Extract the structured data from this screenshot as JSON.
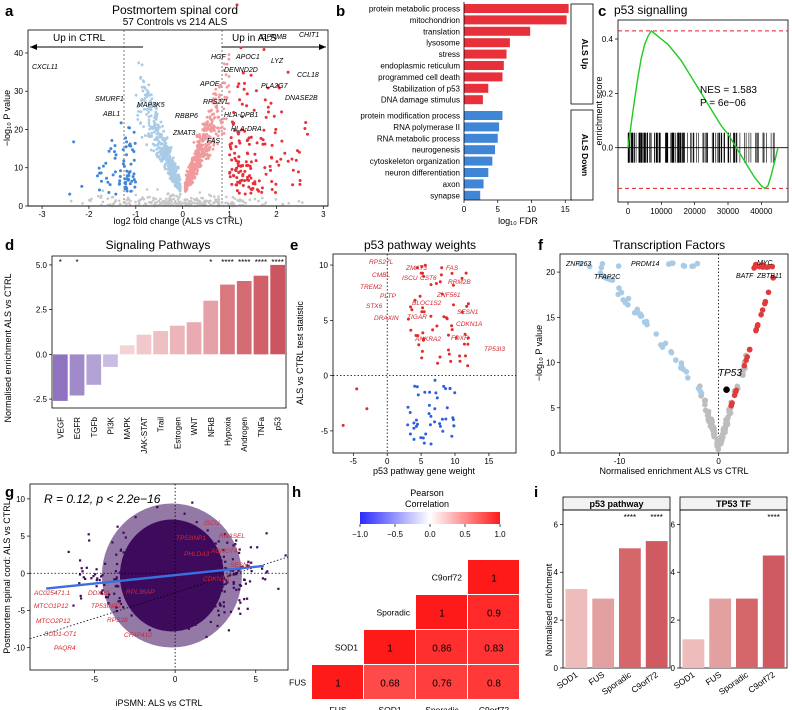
{
  "panel_labels": [
    "a",
    "b",
    "c",
    "d",
    "e",
    "f",
    "g",
    "h",
    "i"
  ],
  "colors": {
    "red": "#e8303a",
    "blue": "#3f86d6",
    "lightblue": "#a9cbe6",
    "grey": "#c8c8c8",
    "purple": "#3d0a5c"
  },
  "panel_a": {
    "title": "Postmortem spinal cord",
    "subtitle": "57 Controls vs 214 ALS",
    "up_ctrl": "Up in CTRL",
    "up_als": "Up in ALS",
    "xlabel": "log2 fold change (ALS vs CTRL)",
    "ylabel": "−log₁₀ P value",
    "genes_up": [
      "GPNMB",
      "CHIT1",
      "HGF",
      "APOC1",
      "LYZ",
      "DENND2D",
      "CCL18",
      "APOE",
      "PLA2G7",
      "DNASE2B",
      "MAP3K5",
      "RPS27L",
      "RBBP6",
      "HLA-DPB1",
      "ZMAT3",
      "HLA-DRA",
      "FAS"
    ],
    "genes_down": [
      "CXCL11",
      "SMURF1",
      "ABL1"
    ],
    "chart_data": {
      "type": "scatter",
      "title": "Postmortem spinal cord",
      "xlabel": "log2 fold change (ALS vs CTRL)",
      "ylabel": "-log10 P value",
      "xlim": [
        -3.3,
        3.1
      ],
      "ylim": [
        0,
        46
      ],
      "xticks": [
        "-3",
        "-2",
        "-1",
        "0",
        "1",
        "2",
        "3"
      ],
      "yticks": [
        "0",
        "10",
        "20",
        "30",
        "40"
      ]
    }
  },
  "panel_b": {
    "xlabel": "log₁₀ FDR",
    "group_up": "ALS Up",
    "group_down": "ALS Down",
    "chart_data": {
      "type": "bar",
      "orientation": "horizontal",
      "xlim": [
        0,
        16
      ],
      "xticks": [
        "0",
        "5",
        "10",
        "15"
      ],
      "up": {
        "categories": [
          "protein metabolic process",
          "mitochondrion",
          "translation",
          "lysosome",
          "stress",
          "endoplasmic reticulum",
          "programmed cell death",
          "Stabilization of p53",
          "DNA damage stimulus"
        ],
        "values": [
          15.5,
          15.2,
          9.8,
          6.8,
          6.3,
          5.9,
          5.7,
          3.6,
          2.8
        ]
      },
      "down": {
        "categories": [
          "protein modification process",
          "RNA polymerase II",
          "RNA metabolic process",
          "neurogenesis",
          "cytoskeleton organization",
          "neuron differentiation",
          "axon",
          "synapse"
        ],
        "values": [
          5.7,
          5.2,
          5.0,
          4.6,
          4.2,
          3.6,
          2.9,
          2.4
        ]
      }
    }
  },
  "panel_c": {
    "title": "p53 signalling",
    "ylabel": "enrichment score",
    "nes": "NES = 1.583",
    "p": "P = 6e−06",
    "chart_data": {
      "type": "line",
      "xlim": [
        -3000,
        48000
      ],
      "ylim": [
        -0.2,
        0.47
      ],
      "xticks": [
        "0",
        "10000",
        "20000",
        "30000",
        "40000"
      ],
      "yticks": [
        "0.0",
        "0.2",
        "0.4"
      ],
      "max_es": 0.43,
      "min_es": -0.15,
      "x": [
        0,
        1000,
        2000,
        3000,
        4000,
        5000,
        6000,
        7000,
        8000,
        9000,
        10000,
        12000,
        14000,
        16000,
        18000,
        20000,
        22000,
        24000,
        26000,
        28000,
        30000,
        32000,
        34000,
        36000,
        38000,
        40000,
        41000,
        42000,
        43000,
        44000,
        45000
      ],
      "y": [
        0.0,
        0.09,
        0.18,
        0.26,
        0.33,
        0.38,
        0.41,
        0.43,
        0.42,
        0.41,
        0.4,
        0.38,
        0.35,
        0.32,
        0.28,
        0.24,
        0.2,
        0.16,
        0.12,
        0.08,
        0.05,
        0.01,
        -0.03,
        -0.07,
        -0.11,
        -0.14,
        -0.15,
        -0.14,
        -0.1,
        -0.05,
        0.0
      ]
    }
  },
  "panel_d": {
    "title": "Signaling Pathways",
    "ylabel": "Normalised enrichment ALS vs CTRL",
    "chart_data": {
      "type": "bar",
      "categories": [
        "VEGF",
        "EGFR",
        "TGFb",
        "PI3K",
        "MAPK",
        "JAK-STAT",
        "Trail",
        "Estrogen",
        "WNT",
        "NFkB",
        "Hypoxia",
        "Androgen",
        "TNFa",
        "p53"
      ],
      "values": [
        -2.6,
        -2.3,
        -1.7,
        -0.7,
        0.5,
        1.1,
        1.3,
        1.6,
        1.8,
        3.0,
        3.9,
        4.1,
        4.4,
        5.0
      ],
      "stars": [
        "*",
        "*",
        "",
        "",
        "",
        "",
        "",
        "",
        "",
        "*",
        "****",
        "****",
        "****",
        "****"
      ],
      "ylim": [
        -3,
        5.5
      ],
      "yticks": [
        "-2.5",
        "0.0",
        "2.5",
        "5.0"
      ]
    }
  },
  "panel_e": {
    "title": "p53 pathway weights",
    "xlabel": "p53 pathway gene weight",
    "ylabel": "ALS vs CTRL test statistic",
    "genes": [
      "RPS27L",
      "ZMAT3",
      "FAS",
      "CMBL",
      "ISCU",
      "CST6",
      "RRM2B",
      "TREM2",
      "ZNF561",
      "PLTP",
      "BLOC1S2",
      "STX6",
      "DRAXIN",
      "TIGAR",
      "SESN1",
      "ANKRA2",
      "CDKN1A",
      "FDXR",
      "TP53I3"
    ],
    "chart_data": {
      "type": "scatter",
      "xlim": [
        -8,
        19
      ],
      "ylim": [
        -7,
        11
      ],
      "xticks": [
        "-5",
        "0",
        "5",
        "10",
        "15"
      ],
      "yticks": [
        "-5",
        "0",
        "5",
        "10"
      ]
    }
  },
  "panel_f": {
    "title": "Transcription Factors",
    "xlabel": "Normalised enrichment ALS vs CTRL",
    "ylabel": "−log₁₀ P value",
    "genes_left": [
      "ZNF263",
      "TFAP2C",
      "PRDM14"
    ],
    "genes_right": [
      "MYC",
      "BATF",
      "ZBTB11"
    ],
    "highlight": "TP53",
    "chart_data": {
      "type": "scatter",
      "xlim": [
        -16,
        7
      ],
      "xticks": [
        "-10",
        "0"
      ],
      "yticks": [
        "0",
        "5",
        "10",
        "15",
        "20"
      ],
      "ylim": [
        0,
        22
      ]
    }
  },
  "panel_g": {
    "stat": "R = 0.12, p < 2.2e−16",
    "xlabel": "iPSMN: ALS vs CTRL",
    "ylabel": "Postmortem spinal cord: ALS vs CTRL",
    "genes_right": [
      "ISCU",
      "TP53INP1",
      "RNASEL",
      "PHLDA3",
      "ACHOT4",
      "SESN1",
      "CDKN1A"
    ],
    "genes_left": [
      "AC025471.1",
      "DDX20",
      "MTCO1P12",
      "TP53INP2",
      "MTCO2P12",
      "RPL36AP",
      "SOD1-OT1",
      "PAQR4",
      "RPS28",
      "CFAP410"
    ],
    "chart_data": {
      "type": "scatter",
      "xlim": [
        -9,
        7
      ],
      "ylim": [
        -13,
        12
      ],
      "xticks": [
        "-5",
        "0",
        "5"
      ],
      "yticks": [
        "-10",
        "-5",
        "0",
        "5",
        "10"
      ],
      "regression": {
        "slope": 0.12
      }
    }
  },
  "panel_h": {
    "legend_title": "Pearson\nCorrelation",
    "legend_ticks": [
      "−1.0",
      "−0.5",
      "0.0",
      "0.5",
      "1.0"
    ],
    "chart_data": {
      "type": "heatmap",
      "rows": [
        "C9orf72",
        "Sporadic",
        "SOD1",
        "FUS"
      ],
      "cols": [
        "FUS",
        "SOD1",
        "Sporadic",
        "C9orf72"
      ],
      "cells": [
        {
          "r": "FUS",
          "c": "FUS",
          "v": "1"
        },
        {
          "r": "FUS",
          "c": "SOD1",
          "v": "0.68"
        },
        {
          "r": "FUS",
          "c": "Sporadic",
          "v": "0.76"
        },
        {
          "r": "FUS",
          "c": "C9orf72",
          "v": "0.8"
        },
        {
          "r": "SOD1",
          "c": "SOD1",
          "v": "1"
        },
        {
          "r": "SOD1",
          "c": "Sporadic",
          "v": "0.86"
        },
        {
          "r": "SOD1",
          "c": "C9orf72",
          "v": "0.83"
        },
        {
          "r": "Sporadic",
          "c": "Sporadic",
          "v": "1"
        },
        {
          "r": "Sporadic",
          "c": "C9orf72",
          "v": "0.9"
        },
        {
          "r": "C9orf72",
          "c": "C9orf72",
          "v": "1"
        }
      ]
    }
  },
  "panel_i": {
    "ylabel": "Normalised enrichment",
    "chart_data": [
      {
        "type": "bar",
        "title": "p53 pathway",
        "categories": [
          "SOD1",
          "FUS",
          "Sporadic",
          "C9orf72"
        ],
        "values": [
          3.3,
          2.9,
          5.0,
          5.3
        ],
        "stars": [
          "",
          "",
          "****",
          "****"
        ],
        "ylim": [
          0,
          6.6
        ],
        "yticks": [
          "0",
          "2",
          "4",
          "6"
        ]
      },
      {
        "type": "bar",
        "title": "TP53 TF",
        "categories": [
          "SOD1",
          "FUS",
          "Sporadic",
          "C9orf72"
        ],
        "values": [
          1.2,
          2.9,
          2.9,
          4.7
        ],
        "stars": [
          "",
          "",
          "",
          "****"
        ],
        "ylim": [
          0,
          6.6
        ],
        "yticks": [
          "0",
          "2",
          "4",
          "6"
        ]
      }
    ]
  }
}
